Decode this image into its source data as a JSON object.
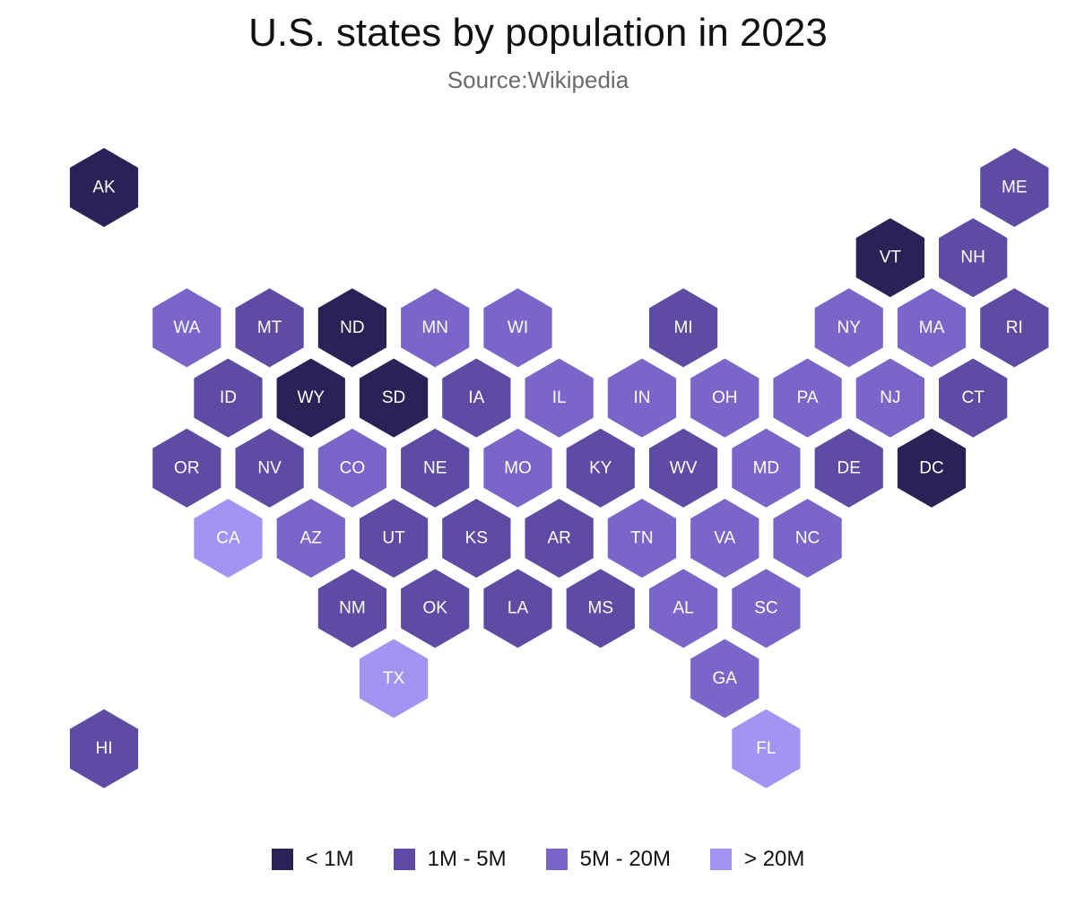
{
  "title": "U.S. states by population in 2023",
  "subtitle": "Source:Wikipedia",
  "colors": {
    "lt1M": "#2b2156",
    "1to5M": "#5e4ba3",
    "5to20M": "#7a66c8",
    "gt20M": "#a394f1"
  },
  "legend": [
    {
      "key": "lt1M",
      "label": "< 1M"
    },
    {
      "key": "1to5M",
      "label": "1M - 5M"
    },
    {
      "key": "5to20M",
      "label": "5M - 20M"
    },
    {
      "key": "gt20M",
      "label": "> 20M"
    }
  ],
  "states": [
    {
      "code": "AK",
      "row": 0,
      "col": 0,
      "bin": "lt1M"
    },
    {
      "code": "ME",
      "row": 0,
      "col": 11,
      "bin": "1to5M"
    },
    {
      "code": "VT",
      "row": 1,
      "col": 9.5,
      "bin": "lt1M"
    },
    {
      "code": "NH",
      "row": 1,
      "col": 10.5,
      "bin": "1to5M"
    },
    {
      "code": "WA",
      "row": 2,
      "col": 1,
      "bin": "5to20M"
    },
    {
      "code": "MT",
      "row": 2,
      "col": 2,
      "bin": "1to5M"
    },
    {
      "code": "ND",
      "row": 2,
      "col": 3,
      "bin": "lt1M"
    },
    {
      "code": "MN",
      "row": 2,
      "col": 4,
      "bin": "5to20M"
    },
    {
      "code": "WI",
      "row": 2,
      "col": 5,
      "bin": "5to20M"
    },
    {
      "code": "MI",
      "row": 2,
      "col": 7,
      "bin": "1to5M"
    },
    {
      "code": "NY",
      "row": 2,
      "col": 9,
      "bin": "5to20M"
    },
    {
      "code": "MA",
      "row": 2,
      "col": 10,
      "bin": "5to20M"
    },
    {
      "code": "RI",
      "row": 2,
      "col": 11,
      "bin": "1to5M"
    },
    {
      "code": "ID",
      "row": 3,
      "col": 1.5,
      "bin": "1to5M"
    },
    {
      "code": "WY",
      "row": 3,
      "col": 2.5,
      "bin": "lt1M"
    },
    {
      "code": "SD",
      "row": 3,
      "col": 3.5,
      "bin": "lt1M"
    },
    {
      "code": "IA",
      "row": 3,
      "col": 4.5,
      "bin": "1to5M"
    },
    {
      "code": "IL",
      "row": 3,
      "col": 5.5,
      "bin": "5to20M"
    },
    {
      "code": "IN",
      "row": 3,
      "col": 6.5,
      "bin": "5to20M"
    },
    {
      "code": "OH",
      "row": 3,
      "col": 7.5,
      "bin": "5to20M"
    },
    {
      "code": "PA",
      "row": 3,
      "col": 8.5,
      "bin": "5to20M"
    },
    {
      "code": "NJ",
      "row": 3,
      "col": 9.5,
      "bin": "5to20M"
    },
    {
      "code": "CT",
      "row": 3,
      "col": 10.5,
      "bin": "1to5M"
    },
    {
      "code": "OR",
      "row": 4,
      "col": 1,
      "bin": "1to5M"
    },
    {
      "code": "NV",
      "row": 4,
      "col": 2,
      "bin": "1to5M"
    },
    {
      "code": "CO",
      "row": 4,
      "col": 3,
      "bin": "5to20M"
    },
    {
      "code": "NE",
      "row": 4,
      "col": 4,
      "bin": "1to5M"
    },
    {
      "code": "MO",
      "row": 4,
      "col": 5,
      "bin": "5to20M"
    },
    {
      "code": "KY",
      "row": 4,
      "col": 6,
      "bin": "1to5M"
    },
    {
      "code": "WV",
      "row": 4,
      "col": 7,
      "bin": "1to5M"
    },
    {
      "code": "MD",
      "row": 4,
      "col": 8,
      "bin": "5to20M"
    },
    {
      "code": "DE",
      "row": 4,
      "col": 9,
      "bin": "1to5M"
    },
    {
      "code": "DC",
      "row": 4,
      "col": 10,
      "bin": "lt1M"
    },
    {
      "code": "CA",
      "row": 5,
      "col": 1.5,
      "bin": "gt20M"
    },
    {
      "code": "AZ",
      "row": 5,
      "col": 2.5,
      "bin": "5to20M"
    },
    {
      "code": "UT",
      "row": 5,
      "col": 3.5,
      "bin": "1to5M"
    },
    {
      "code": "KS",
      "row": 5,
      "col": 4.5,
      "bin": "1to5M"
    },
    {
      "code": "AR",
      "row": 5,
      "col": 5.5,
      "bin": "1to5M"
    },
    {
      "code": "TN",
      "row": 5,
      "col": 6.5,
      "bin": "5to20M"
    },
    {
      "code": "VA",
      "row": 5,
      "col": 7.5,
      "bin": "5to20M"
    },
    {
      "code": "NC",
      "row": 5,
      "col": 8.5,
      "bin": "5to20M"
    },
    {
      "code": "NM",
      "row": 6,
      "col": 3,
      "bin": "1to5M"
    },
    {
      "code": "OK",
      "row": 6,
      "col": 4,
      "bin": "1to5M"
    },
    {
      "code": "LA",
      "row": 6,
      "col": 5,
      "bin": "1to5M"
    },
    {
      "code": "MS",
      "row": 6,
      "col": 6,
      "bin": "1to5M"
    },
    {
      "code": "AL",
      "row": 6,
      "col": 7,
      "bin": "5to20M"
    },
    {
      "code": "SC",
      "row": 6,
      "col": 8,
      "bin": "5to20M"
    },
    {
      "code": "TX",
      "row": 7,
      "col": 3.5,
      "bin": "gt20M"
    },
    {
      "code": "GA",
      "row": 7,
      "col": 7.5,
      "bin": "5to20M"
    },
    {
      "code": "HI",
      "row": 8,
      "col": 0,
      "bin": "1to5M"
    },
    {
      "code": "FL",
      "row": 8,
      "col": 8,
      "bin": "gt20M"
    }
  ]
}
